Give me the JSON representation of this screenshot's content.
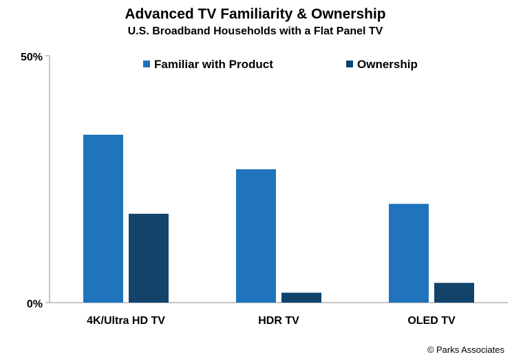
{
  "chart_data": {
    "type": "bar",
    "title": "Advanced TV Familiarity & Ownership",
    "subtitle": "U.S. Broadband Households with a Flat Panel TV",
    "categories": [
      "4K/Ultra HD TV",
      "HDR TV",
      "OLED TV"
    ],
    "series": [
      {
        "name": "Familiar with Product",
        "color": "#1f74bd",
        "values": [
          34,
          27,
          20
        ]
      },
      {
        "name": "Ownership",
        "color": "#12436b",
        "values": [
          18,
          2,
          4
        ]
      }
    ],
    "ylim": [
      0,
      50
    ],
    "ytick_labels": [
      "0%",
      "50%"
    ],
    "xlabel": "",
    "ylabel": "",
    "grid": false,
    "legend_position": "top"
  },
  "credit": "© Parks Associates"
}
